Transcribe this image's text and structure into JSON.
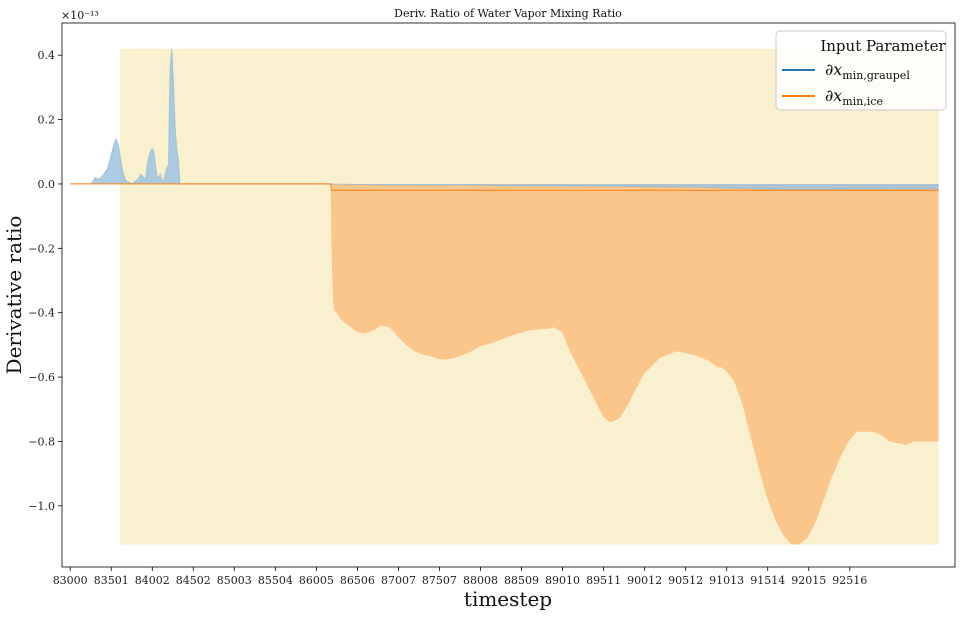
{
  "chart_data": {
    "type": "area",
    "title": "Deriv. Ratio of Water Vapor Mixing Ratio",
    "xlabel": "timestep",
    "ylabel": "Derivative ratio",
    "y_offset_label": "×10⁻¹³",
    "y_scale_exponent": -13,
    "xlim": [
      82900,
      93800
    ],
    "ylim": [
      -1.19,
      0.5
    ],
    "x_ticks": [
      83000,
      83501,
      84002,
      84502,
      85003,
      85504,
      86005,
      86506,
      87007,
      87507,
      88008,
      88509,
      89010,
      89511,
      90012,
      90512,
      91013,
      91514,
      92015,
      92516
    ],
    "y_ticks": [
      -1.0,
      -0.8,
      -0.6,
      -0.4,
      -0.2,
      0.0,
      0.2,
      0.4
    ],
    "y_tick_labels": [
      "−1.0",
      "−0.8",
      "−0.6",
      "−0.4",
      "−0.2",
      "0.0",
      "0.2",
      "0.4"
    ],
    "grid": false,
    "legend": {
      "title": "Input Parameter",
      "placement": "top-right",
      "entries": [
        {
          "label": "∂x",
          "sub": "min,graupel",
          "color": "#1f77b4"
        },
        {
          "label": "∂x",
          "sub": "min,ice",
          "color": "#ff7f0e"
        }
      ]
    },
    "background_band": {
      "x_start": 83610,
      "x_end": 93600,
      "y_min": -1.12,
      "y_max": 0.42,
      "color": "#f8f0cf"
    },
    "series": [
      {
        "name": "∂x min,graupel",
        "color": "#1f77b4",
        "fill_color": "#9dc3df",
        "x": [
          83000,
          83260,
          83300,
          83340,
          83380,
          83420,
          83450,
          83480,
          83500,
          83530,
          83560,
          83590,
          83620,
          83650,
          83680,
          83720,
          83760,
          83800,
          83830,
          83860,
          83880,
          83900,
          83920,
          83940,
          83960,
          83980,
          84000,
          84020,
          84040,
          84060,
          84080,
          84100,
          84120,
          84140,
          84160,
          84180,
          84200,
          84210,
          84220,
          84240,
          84260,
          84280,
          84300,
          84320,
          84340,
          86000,
          87000,
          88000,
          89000,
          90000,
          90700,
          91000,
          91500,
          92000,
          92500,
          93000,
          93600
        ],
        "values": [
          0.0,
          0.0,
          0.02,
          0.015,
          0.02,
          0.035,
          0.045,
          0.07,
          0.09,
          0.12,
          0.14,
          0.12,
          0.07,
          0.03,
          0.01,
          0.005,
          0.0,
          0.01,
          0.015,
          0.03,
          0.025,
          0.02,
          0.015,
          0.06,
          0.085,
          0.1,
          0.11,
          0.1,
          0.06,
          0.025,
          0.02,
          0.03,
          0.01,
          0.01,
          0.03,
          0.05,
          0.06,
          0.22,
          0.36,
          0.42,
          0.32,
          0.18,
          0.11,
          0.08,
          0.0,
          0.0,
          -0.003,
          -0.004,
          -0.006,
          -0.008,
          -0.01,
          -0.013,
          -0.016,
          -0.018,
          -0.016,
          -0.015,
          -0.016
        ]
      },
      {
        "name": "∂x min,ice",
        "color": "#ff7f0e",
        "fill_color": "#fac68c",
        "x": [
          83000,
          86180,
          86190,
          86200,
          86210,
          86220,
          86250,
          86300,
          86400,
          86500,
          86600,
          86700,
          86800,
          86900,
          87000,
          87100,
          87200,
          87300,
          87400,
          87500,
          87600,
          87700,
          87800,
          87900,
          88000,
          88200,
          88400,
          88600,
          88800,
          88850,
          88900,
          89000,
          89100,
          89200,
          89300,
          89400,
          89500,
          89550,
          89600,
          89700,
          89800,
          89900,
          90000,
          90200,
          90400,
          90600,
          90800,
          90900,
          90950,
          91000,
          91100,
          91200,
          91300,
          91400,
          91500,
          91600,
          91700,
          91800,
          91900,
          92000,
          92100,
          92200,
          92300,
          92400,
          92500,
          92600,
          92800,
          92900,
          93000,
          93200,
          93300,
          93400,
          93500,
          93600
        ],
        "values": [
          0.0,
          0.0,
          -0.2,
          -0.3,
          -0.37,
          -0.39,
          -0.4,
          -0.42,
          -0.44,
          -0.46,
          -0.465,
          -0.455,
          -0.44,
          -0.445,
          -0.475,
          -0.5,
          -0.52,
          -0.53,
          -0.535,
          -0.545,
          -0.545,
          -0.54,
          -0.53,
          -0.52,
          -0.505,
          -0.49,
          -0.47,
          -0.455,
          -0.45,
          -0.45,
          -0.445,
          -0.46,
          -0.52,
          -0.57,
          -0.62,
          -0.67,
          -0.72,
          -0.735,
          -0.74,
          -0.73,
          -0.69,
          -0.64,
          -0.59,
          -0.54,
          -0.52,
          -0.53,
          -0.55,
          -0.57,
          -0.57,
          -0.58,
          -0.61,
          -0.68,
          -0.78,
          -0.88,
          -0.97,
          -1.04,
          -1.09,
          -1.12,
          -1.12,
          -1.1,
          -1.05,
          -0.98,
          -0.91,
          -0.85,
          -0.8,
          -0.77,
          -0.77,
          -0.78,
          -0.8,
          -0.81,
          -0.8,
          -0.8,
          -0.8,
          -0.8
        ]
      }
    ]
  }
}
